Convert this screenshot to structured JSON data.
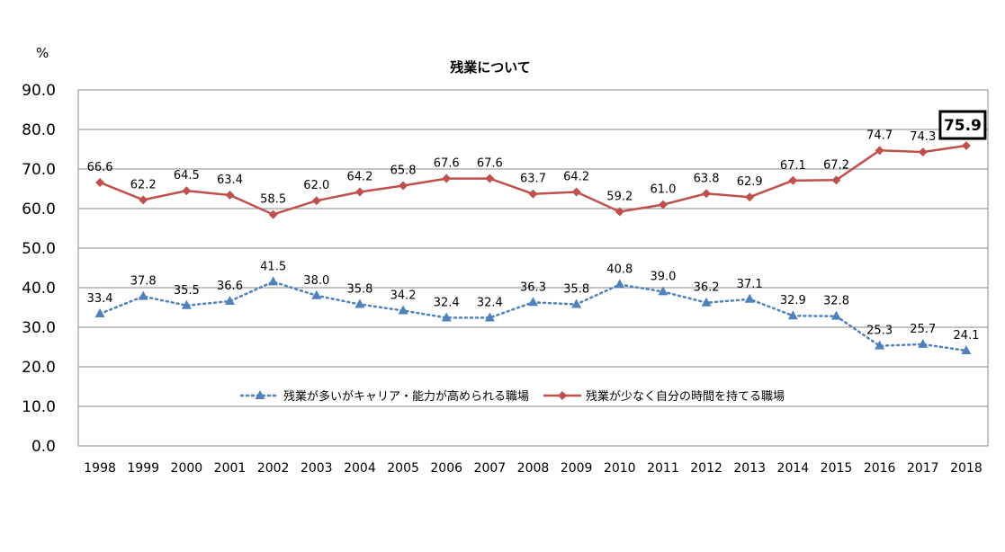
{
  "chart_data": {
    "type": "line",
    "title": "残業について",
    "unit_label": "%",
    "categories": [
      "1998",
      "1999",
      "2000",
      "2001",
      "2002",
      "2003",
      "2004",
      "2005",
      "2006",
      "2007",
      "2008",
      "2009",
      "2010",
      "2011",
      "2012",
      "2013",
      "2014",
      "2015",
      "2016",
      "2017",
      "2018"
    ],
    "ylim": [
      0,
      90
    ],
    "yticks": [
      "0.0",
      "10.0",
      "20.0",
      "30.0",
      "40.0",
      "50.0",
      "60.0",
      "70.0",
      "80.0",
      "90.0"
    ],
    "grid": true,
    "legend_position": "inside-bottom-center",
    "series": [
      {
        "name": "残業が多いがキャリア・能力が高められる職場",
        "color": "#4F81BD",
        "marker": "triangle",
        "line_style": "dotted",
        "values": [
          33.4,
          37.8,
          35.5,
          36.6,
          41.5,
          38.0,
          35.8,
          34.2,
          32.4,
          32.4,
          36.3,
          35.8,
          40.8,
          39.0,
          36.2,
          37.1,
          32.9,
          32.8,
          25.3,
          25.7,
          24.1
        ],
        "labels": [
          "33.4",
          "37.8",
          "35.5",
          "36.6",
          "41.5",
          "38.0",
          "35.8",
          "34.2",
          "32.4",
          "32.4",
          "36.3",
          "35.8",
          "40.8",
          "39.0",
          "36.2",
          "37.1",
          "32.9",
          "32.8",
          "25.3",
          "25.7",
          "24.1"
        ]
      },
      {
        "name": "残業が少なく自分の時間を持てる職場",
        "color": "#C0504D",
        "marker": "diamond",
        "line_style": "solid",
        "values": [
          66.6,
          62.2,
          64.5,
          63.4,
          58.5,
          62.0,
          64.2,
          65.8,
          67.6,
          67.6,
          63.7,
          64.2,
          59.2,
          61.0,
          63.8,
          62.9,
          67.1,
          67.2,
          74.7,
          74.3,
          75.9
        ],
        "labels": [
          "66.6",
          "62.2",
          "64.5",
          "63.4",
          "58.5",
          "62.0",
          "64.2",
          "65.8",
          "67.6",
          "67.6",
          "63.7",
          "64.2",
          "59.2",
          "61.0",
          "63.8",
          "62.9",
          "67.1",
          "67.2",
          "74.7",
          "74.3",
          "75.9"
        ]
      }
    ]
  }
}
